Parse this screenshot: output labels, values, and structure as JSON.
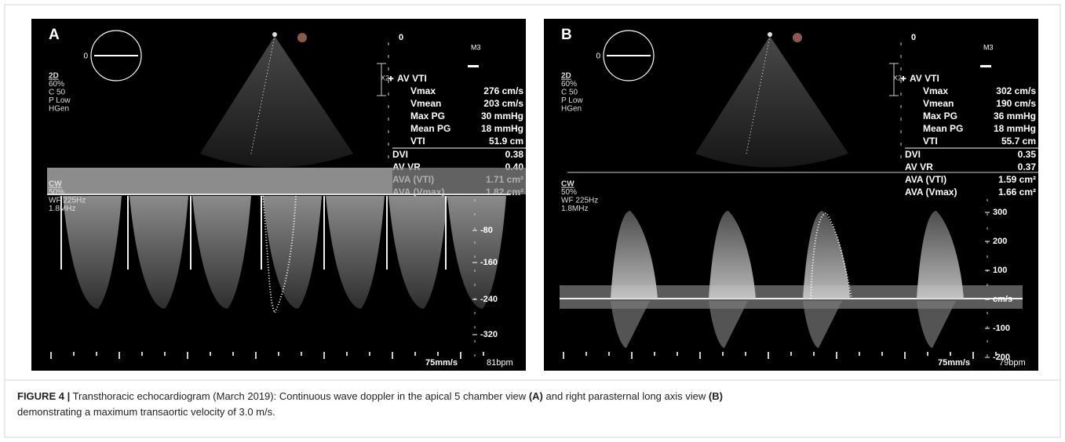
{
  "panels": [
    {
      "label": "A",
      "probe_label": "0",
      "scale_top": "0",
      "mode": "M3",
      "zoom": "X2",
      "settings_2d": [
        "2D",
        "60%",
        "C 50",
        "P Low",
        "HGen"
      ],
      "measure_title": "AV VTI",
      "measurements": [
        {
          "name": "Vmax",
          "value": "276 cm/s"
        },
        {
          "name": "Vmean",
          "value": "203 cm/s"
        },
        {
          "name": "Max PG",
          "value": "30 mmHg"
        },
        {
          "name": "Mean PG",
          "value": "18 mmHg"
        },
        {
          "name": "VTI",
          "value": "51.9 cm"
        },
        {
          "name": "DVI",
          "value": "0.38"
        },
        {
          "name": "AV VR",
          "value": "0.40"
        },
        {
          "name": "AVA (VTI)",
          "value": "1.71 cm²"
        },
        {
          "name": "AVA (Vmax)",
          "value": "1.82 cm²"
        }
      ],
      "cw_settings": [
        "CW",
        "50%",
        "WF 225Hz",
        "1.8MHz"
      ],
      "velocity_scale": [
        "-80",
        "-160",
        "-240",
        "-320"
      ],
      "sweep": "75mm/s",
      "heart_rate": "81bpm"
    },
    {
      "label": "B",
      "probe_label": "0",
      "scale_top": "0",
      "mode": "M3",
      "zoom": "X2",
      "settings_2d": [
        "2D",
        "60%",
        "C 50",
        "P Low",
        "HGen"
      ],
      "measure_title": "AV VTI",
      "measurements": [
        {
          "name": "Vmax",
          "value": "302 cm/s"
        },
        {
          "name": "Vmean",
          "value": "190 cm/s"
        },
        {
          "name": "Max PG",
          "value": "36 mmHg"
        },
        {
          "name": "Mean PG",
          "value": "18 mmHg"
        },
        {
          "name": "VTI",
          "value": "55.7 cm"
        },
        {
          "name": "DVI",
          "value": "0.35"
        },
        {
          "name": "AV VR",
          "value": "0.37"
        },
        {
          "name": "AVA (VTI)",
          "value": "1.59 cm²"
        },
        {
          "name": "AVA (Vmax)",
          "value": "1.66 cm²"
        }
      ],
      "cw_settings": [
        "CW",
        "50%",
        "WF 225Hz",
        "1.8MHz"
      ],
      "velocity_scale": [
        "300",
        "200",
        "100",
        "cm/s",
        "-100",
        "-200"
      ],
      "sweep": "75mm/s",
      "heart_rate": "79bpm"
    }
  ],
  "caption": {
    "label": "FIGURE 4 |",
    "line1": [
      "Transthoracic echocardiogram (March 2019): Continuous wave doppler in the apical 5 chamber view",
      "(A)",
      "and right parasternal long axis view",
      "(B)"
    ],
    "line2": "demonstrating a maximum transaortic velocity of 3.0 m/s."
  }
}
